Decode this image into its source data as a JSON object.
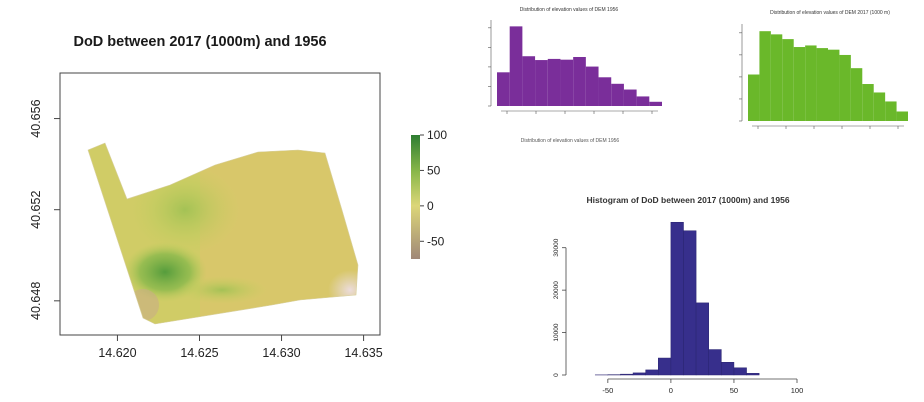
{
  "chart_data": [
    {
      "type": "heatmap",
      "title": "DoD between 2017 (1000m) and 1956",
      "x_ticks": [
        "14.620",
        "14.625",
        "14.630",
        "14.635"
      ],
      "x_tick_values": [
        14.62,
        14.625,
        14.63,
        14.635
      ],
      "y_ticks": [
        "40.648",
        "40.652",
        "40.656"
      ],
      "y_tick_values": [
        40.648,
        40.652,
        40.656
      ],
      "xlim": [
        14.6165,
        14.636
      ],
      "ylim": [
        40.6465,
        40.658
      ],
      "colorbar_ticks": [
        "100",
        "50",
        "0",
        "-50"
      ],
      "colorbar_tick_values": [
        100,
        50,
        0,
        -50
      ],
      "colorbar_range": [
        -75,
        100
      ],
      "colors": {
        "low": "#a08878",
        "zero": "#dcd678",
        "high": "#2e7d32"
      }
    },
    {
      "type": "bar",
      "title": "Distribution of elevation values of DEM 1956",
      "color": "#7a2e9a",
      "values": [
        880,
        2080,
        1300,
        1200,
        1230,
        1210,
        1280,
        1030,
        750,
        580,
        430,
        250,
        110
      ]
    },
    {
      "type": "bar",
      "title": "Distribution of elevation values of DEM 2017 (1000 m)",
      "color": "#6ab82a",
      "values": [
        880,
        1700,
        1640,
        1550,
        1400,
        1430,
        1380,
        1350,
        1250,
        1000,
        700,
        540,
        370,
        180
      ]
    },
    {
      "type": "bar",
      "title": "Histogram of DoD between 2017 (1000m) and 1956",
      "color": "#372f8c",
      "x_ticks": [
        "-50",
        "0",
        "50",
        "100"
      ],
      "x_tick_values": [
        -50,
        0,
        50,
        100
      ],
      "y_ticks": [
        "0",
        "10000",
        "20000",
        "30000"
      ],
      "y_tick_values": [
        0,
        10000,
        20000,
        30000
      ],
      "xlim": [
        -80,
        100
      ],
      "ylim": [
        0,
        37000
      ],
      "bin_edges": [
        -60,
        -50,
        -40,
        -30,
        -20,
        -10,
        0,
        10,
        20,
        30,
        40,
        50,
        60,
        70
      ],
      "values": [
        30,
        80,
        200,
        500,
        1200,
        4000,
        36000,
        34000,
        17000,
        6000,
        3000,
        1700,
        400
      ]
    }
  ],
  "small_caption": "Distribution of elevation values of DEM 1956"
}
